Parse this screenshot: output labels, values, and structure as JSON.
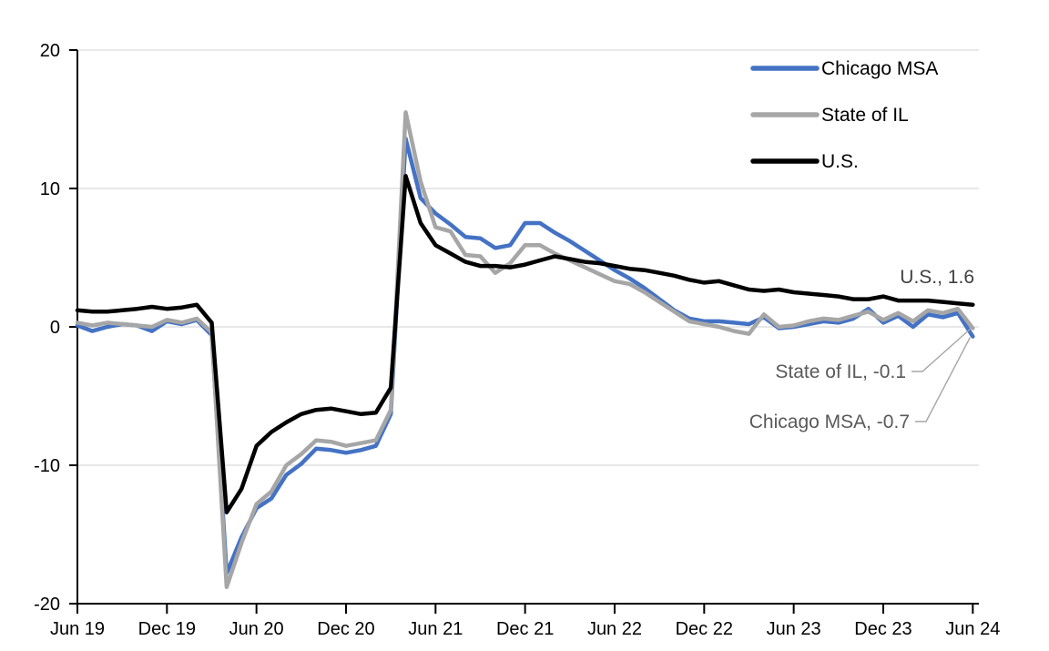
{
  "chart_data": {
    "type": "line",
    "title": "",
    "xlabel": "",
    "ylabel": "",
    "x_unit": "month",
    "x_start": "Jun 2019",
    "x_end": "Jun 2024",
    "x_tick_labels": [
      "Jun 19",
      "Dec 19",
      "Jun 20",
      "Dec 20",
      "Jun 21",
      "Dec 21",
      "Jun 22",
      "Dec 22",
      "Jun 23",
      "Dec 23",
      "Jun 24"
    ],
    "y_tick_labels": [
      "20",
      "10",
      "0",
      "-10",
      "-20"
    ],
    "y_ticks": [
      20,
      10,
      0,
      -10,
      -20
    ],
    "ylim": [
      -20,
      20
    ],
    "grid": true,
    "gridline_color": "#d9d9d9",
    "axis_color": "#000000",
    "legend_position": "top-right",
    "series": [
      {
        "name": "Chicago MSA",
        "color": "#4472c4",
        "values": [
          0.1,
          -0.3,
          0.0,
          0.2,
          0.1,
          -0.3,
          0.4,
          0.2,
          0.5,
          -0.6,
          -17.8,
          -15.2,
          -13.1,
          -12.4,
          -10.7,
          -9.9,
          -8.8,
          -8.9,
          -9.1,
          -8.9,
          -8.6,
          -6.3,
          13.6,
          9.3,
          8.2,
          7.4,
          6.5,
          6.4,
          5.7,
          5.9,
          7.5,
          7.5,
          6.8,
          6.2,
          5.5,
          4.8,
          4.1,
          3.5,
          2.8,
          2.0,
          1.2,
          0.6,
          0.4,
          0.4,
          0.3,
          0.2,
          0.7,
          -0.1,
          0.0,
          0.2,
          0.4,
          0.3,
          0.6,
          1.3,
          0.3,
          0.8,
          0.0,
          0.9,
          0.7,
          1.0,
          -0.7
        ]
      },
      {
        "name": "State of IL",
        "color": "#a6a6a6",
        "values": [
          0.3,
          0.1,
          0.3,
          0.2,
          0.1,
          0.0,
          0.5,
          0.3,
          0.6,
          -0.4,
          -18.8,
          -15.6,
          -12.8,
          -11.9,
          -10.0,
          -9.2,
          -8.2,
          -8.3,
          -8.6,
          -8.4,
          -8.2,
          -6.0,
          15.5,
          10.5,
          7.2,
          6.9,
          5.2,
          5.1,
          3.9,
          4.6,
          5.9,
          5.9,
          5.3,
          4.8,
          4.3,
          3.8,
          3.3,
          3.1,
          2.5,
          1.8,
          1.1,
          0.4,
          0.2,
          0.0,
          -0.3,
          -0.5,
          0.9,
          0.0,
          0.1,
          0.4,
          0.6,
          0.5,
          0.8,
          1.1,
          0.5,
          1.0,
          0.4,
          1.2,
          1.0,
          1.3,
          -0.1
        ]
      },
      {
        "name": "U.S.",
        "color": "#000000",
        "values": [
          1.2,
          1.1,
          1.1,
          1.2,
          1.3,
          1.45,
          1.3,
          1.4,
          1.6,
          0.3,
          -13.4,
          -11.7,
          -8.6,
          -7.6,
          -6.9,
          -6.3,
          -6.0,
          -5.9,
          -6.1,
          -6.3,
          -6.2,
          -4.4,
          10.9,
          7.5,
          5.9,
          5.3,
          4.7,
          4.4,
          4.4,
          4.3,
          4.5,
          4.8,
          5.1,
          4.9,
          4.7,
          4.6,
          4.4,
          4.2,
          4.1,
          3.9,
          3.7,
          3.4,
          3.2,
          3.3,
          3.0,
          2.7,
          2.6,
          2.7,
          2.5,
          2.4,
          2.3,
          2.2,
          2.0,
          2.0,
          2.2,
          1.9,
          1.9,
          1.9,
          1.8,
          1.7,
          1.6
        ]
      }
    ],
    "end_labels": [
      {
        "series": "U.S.",
        "text": "U.S., 1.6",
        "value": 1.6,
        "color": "#404040",
        "leader": false
      },
      {
        "series": "State of IL",
        "text": "State of IL, -0.1",
        "value": -0.1,
        "color": "#595959",
        "leader": true
      },
      {
        "series": "Chicago MSA",
        "text": "Chicago MSA, -0.7",
        "value": -0.7,
        "color": "#595959",
        "leader": true
      }
    ],
    "leader_line_color": "#a6a6a6",
    "legend": [
      "Chicago MSA",
      "State of IL",
      "U.S."
    ]
  }
}
